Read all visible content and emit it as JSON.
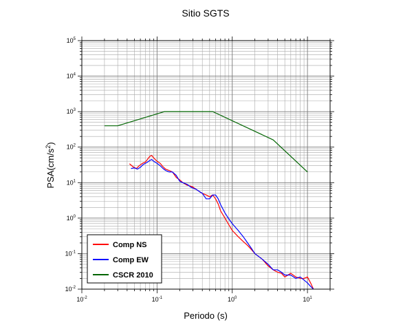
{
  "chart_data": {
    "type": "line",
    "title": "Sitio SGTS",
    "xlabel": "Periodo (s)",
    "ylabel_main": "PSA(cm/s",
    "ylabel_sup": "2",
    "ylabel_end": ")",
    "x_scale": "log",
    "y_scale": "log",
    "xlim": [
      0.01,
      20
    ],
    "ylim": [
      0.01,
      100000
    ],
    "grid": true,
    "legend_position": "bottom-left",
    "x_ticks": [
      {
        "value": 0.01,
        "base": "10",
        "exp": "-2"
      },
      {
        "value": 0.1,
        "base": "10",
        "exp": "-1"
      },
      {
        "value": 1,
        "base": "10",
        "exp": "0"
      },
      {
        "value": 10,
        "base": "10",
        "exp": "1"
      }
    ],
    "y_ticks": [
      {
        "value": 0.01,
        "base": "10",
        "exp": "-2"
      },
      {
        "value": 0.1,
        "base": "10",
        "exp": "-1"
      },
      {
        "value": 1,
        "base": "10",
        "exp": "0"
      },
      {
        "value": 10,
        "base": "10",
        "exp": "1"
      },
      {
        "value": 100,
        "base": "10",
        "exp": "2"
      },
      {
        "value": 1000,
        "base": "10",
        "exp": "3"
      },
      {
        "value": 10000,
        "base": "10",
        "exp": "4"
      },
      {
        "value": 100000,
        "base": "10",
        "exp": "5"
      }
    ],
    "series": [
      {
        "name": "Comp NS",
        "color": "#ff0000",
        "x": [
          0.043,
          0.048,
          0.053,
          0.058,
          0.064,
          0.07,
          0.075,
          0.08,
          0.085,
          0.09,
          0.1,
          0.11,
          0.12,
          0.13,
          0.145,
          0.16,
          0.18,
          0.2,
          0.22,
          0.25,
          0.28,
          0.3,
          0.33,
          0.37,
          0.4,
          0.45,
          0.5,
          0.55,
          0.6,
          0.65,
          0.7,
          0.8,
          0.9,
          1.0,
          1.2,
          1.4,
          1.6,
          1.8,
          2.0,
          2.5,
          3.0,
          3.5,
          4.0,
          4.5,
          5.0,
          6.0,
          7.0,
          8.0,
          9.0,
          10.0,
          11.0,
          12.0
        ],
        "y": [
          34,
          28,
          25,
          30,
          35,
          38,
          46,
          55,
          58,
          50,
          40,
          35,
          28,
          24,
          22,
          20,
          14,
          12,
          10,
          8.5,
          8,
          7.5,
          6.5,
          5.5,
          5,
          4.5,
          4,
          4.5,
          3.5,
          2.5,
          1.6,
          1.0,
          0.65,
          0.45,
          0.3,
          0.22,
          0.17,
          0.13,
          0.1,
          0.07,
          0.045,
          0.035,
          0.03,
          0.028,
          0.022,
          0.028,
          0.022,
          0.02,
          0.02,
          0.022,
          0.015,
          0.01
        ]
      },
      {
        "name": "Comp EW",
        "color": "#0000ff",
        "x": [
          0.045,
          0.05,
          0.055,
          0.06,
          0.065,
          0.07,
          0.075,
          0.08,
          0.085,
          0.09,
          0.1,
          0.11,
          0.12,
          0.13,
          0.145,
          0.16,
          0.18,
          0.2,
          0.22,
          0.25,
          0.28,
          0.3,
          0.33,
          0.37,
          0.4,
          0.45,
          0.5,
          0.55,
          0.6,
          0.65,
          0.7,
          0.8,
          0.9,
          1.0,
          1.2,
          1.4,
          1.6,
          1.8,
          2.0,
          2.5,
          3.0,
          3.5,
          4.0,
          4.5,
          5.0,
          6.0,
          7.0,
          8.0,
          9.0,
          10.0,
          11.0,
          12.0
        ],
        "y": [
          25,
          26,
          24,
          27,
          32,
          35,
          38,
          42,
          45,
          40,
          35,
          30,
          25,
          22,
          20,
          20,
          16,
          11,
          10,
          9,
          7.5,
          7,
          6.5,
          5.5,
          5,
          3.5,
          3.5,
          4.5,
          4.5,
          3.5,
          2.4,
          1.4,
          0.95,
          0.7,
          0.45,
          0.3,
          0.2,
          0.14,
          0.1,
          0.07,
          0.05,
          0.035,
          0.035,
          0.03,
          0.025,
          0.025,
          0.02,
          0.022,
          0.018,
          0.015,
          0.012,
          0.01
        ]
      },
      {
        "name": "CSCR 2010",
        "color": "#006400",
        "x": [
          0.02,
          0.03,
          0.125,
          0.55,
          3.5,
          10
        ],
        "y": [
          400,
          400,
          1000,
          1000,
          160,
          20
        ]
      }
    ]
  }
}
